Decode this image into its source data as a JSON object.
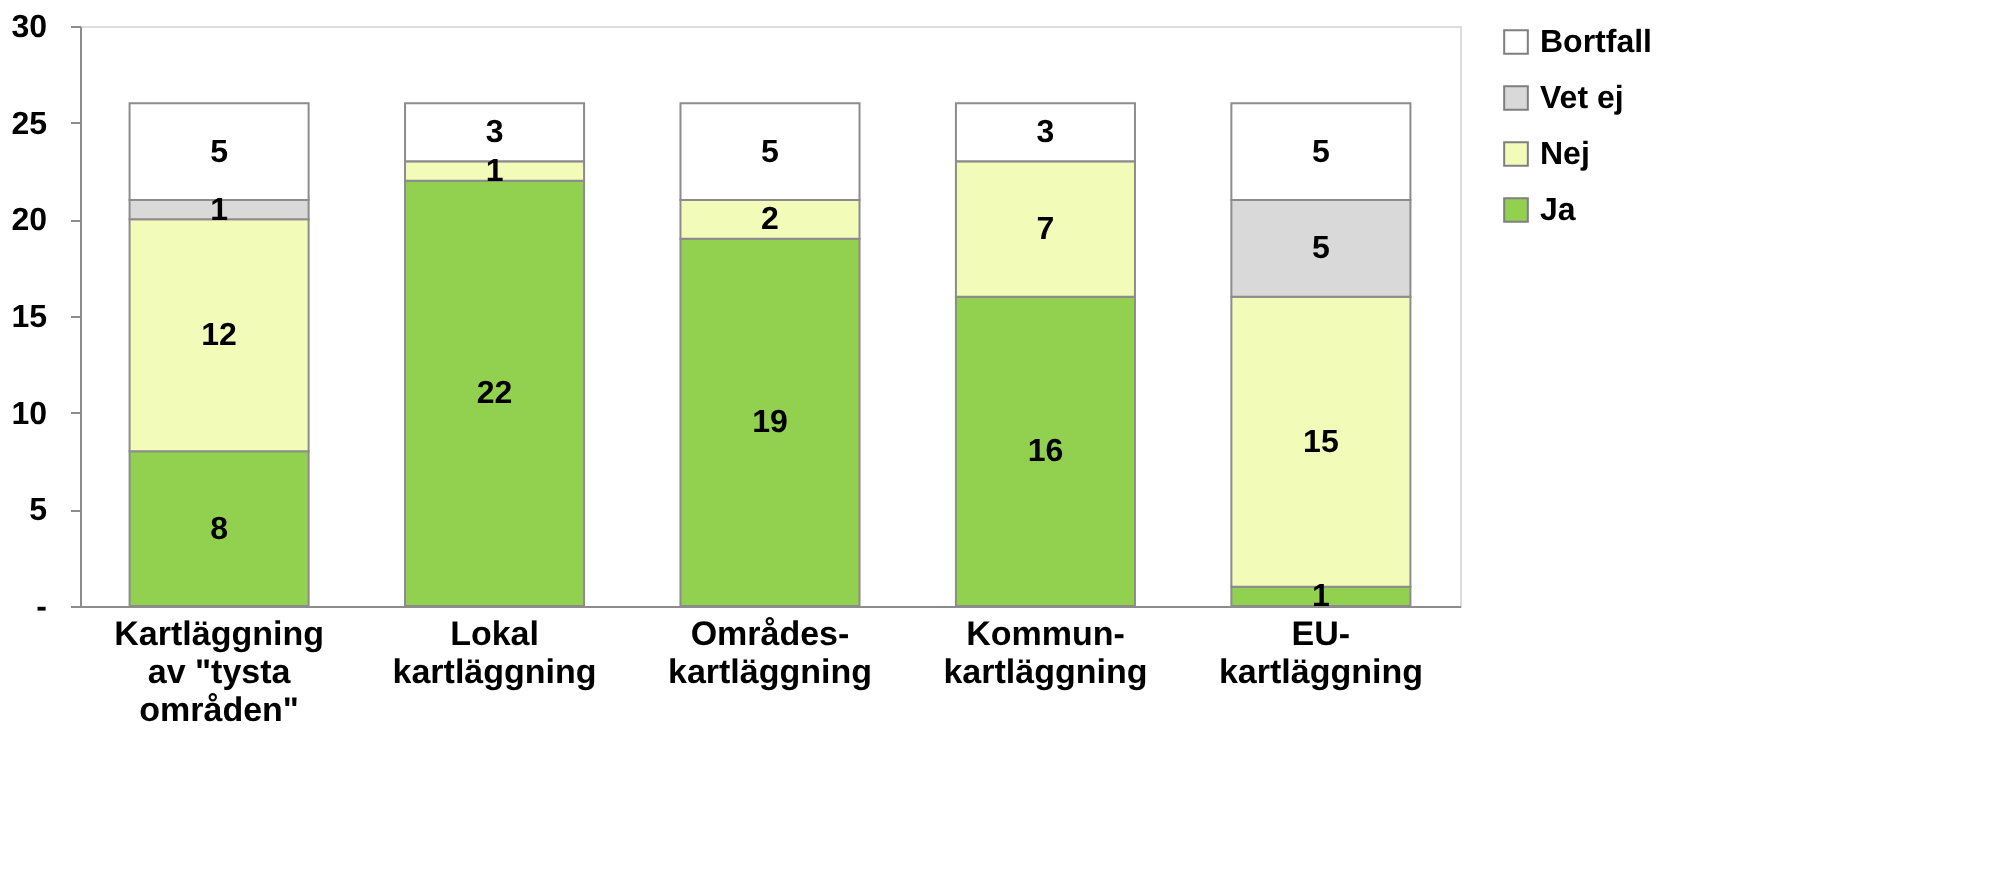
{
  "chart_data": {
    "type": "bar",
    "stacked": true,
    "categories": [
      "Kartläggning av \"tysta områden\"",
      "Lokal kartläggning",
      "Områdes-kartläggning",
      "Kommun-kartläggning",
      "EU-kartläggning"
    ],
    "series": [
      {
        "name": "Ja",
        "color": "#92d050",
        "values": [
          8,
          22,
          19,
          16,
          1
        ],
        "value_labels": [
          "8",
          "22",
          "19",
          "16",
          "1"
        ]
      },
      {
        "name": "Nej",
        "color": "#f2fbb8",
        "values": [
          12,
          1,
          2,
          7,
          15
        ],
        "value_labels": [
          "12",
          "1",
          "2",
          "7",
          "15"
        ]
      },
      {
        "name": "Vet ej",
        "color": "#d9d9d9",
        "values": [
          1,
          0,
          0,
          0,
          5
        ],
        "value_labels": [
          "1",
          null,
          null,
          null,
          "5"
        ]
      },
      {
        "name": "Bortfall",
        "color": "#ffffff",
        "values": [
          5,
          3,
          5,
          3,
          5
        ],
        "value_labels": [
          "5",
          "3",
          "5",
          "3",
          "5"
        ]
      }
    ],
    "ylim": [
      0,
      30
    ],
    "yticks": [
      {
        "value": 0,
        "label": "-"
      },
      5,
      10,
      15,
      20,
      25,
      30
    ],
    "grid": false,
    "legend": "right"
  }
}
